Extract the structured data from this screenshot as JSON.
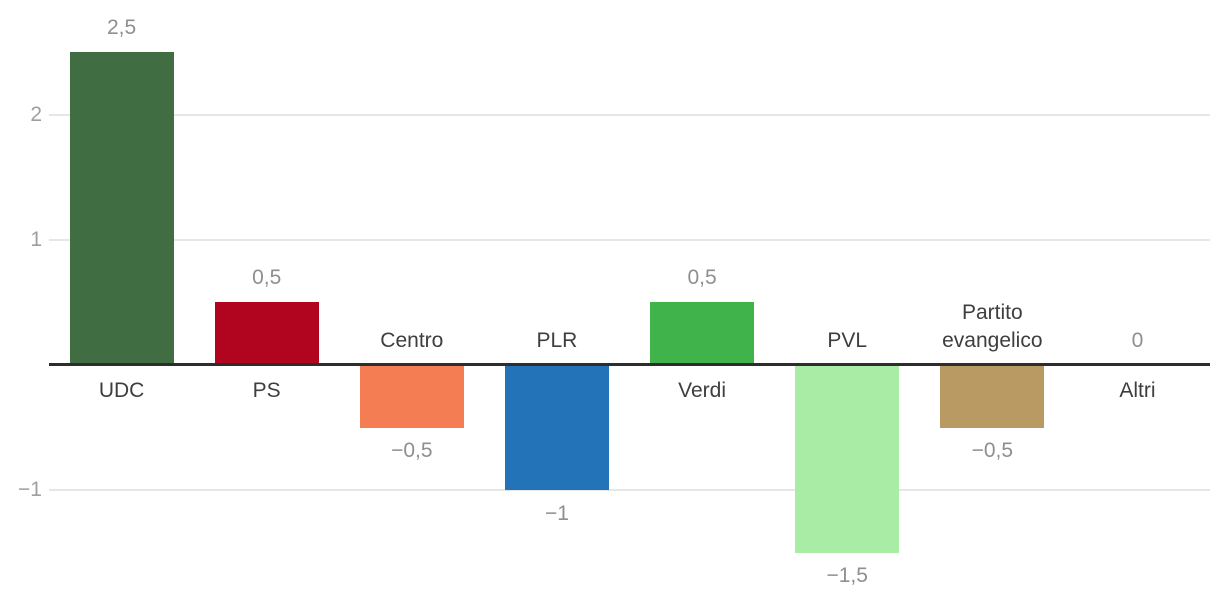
{
  "chart_data": {
    "type": "bar",
    "title": "",
    "xlabel": "",
    "ylabel": "",
    "grid": true,
    "legend": false,
    "decimal_separator": ",",
    "categories": [
      "UDC",
      "PS",
      "Centro",
      "PLR",
      "Verdi",
      "PVL",
      "Partito evangelico",
      "Altri"
    ],
    "values": [
      2.5,
      0.5,
      -0.5,
      -1,
      0.5,
      -1.5,
      -0.5,
      0
    ],
    "bars": [
      {
        "category": "UDC",
        "label_lines": [
          "UDC"
        ],
        "value": 2.5,
        "value_label": "2,5",
        "color": "#406e42"
      },
      {
        "category": "PS",
        "label_lines": [
          "PS"
        ],
        "value": 0.5,
        "value_label": "0,5",
        "color": "#b1051f"
      },
      {
        "category": "Centro",
        "label_lines": [
          "Centro"
        ],
        "value": -0.5,
        "value_label": "−0,5",
        "color": "#f47d54"
      },
      {
        "category": "PLR",
        "label_lines": [
          "PLR"
        ],
        "value": -1,
        "value_label": "−1",
        "color": "#2373b9"
      },
      {
        "category": "Verdi",
        "label_lines": [
          "Verdi"
        ],
        "value": 0.5,
        "value_label": "0,5",
        "color": "#40b44a"
      },
      {
        "category": "PVL",
        "label_lines": [
          "PVL"
        ],
        "value": -1.5,
        "value_label": "−1,5",
        "color": "#a8eca6"
      },
      {
        "category": "Partito evangelico",
        "label_lines": [
          "Partito",
          "evangelico"
        ],
        "value": -0.5,
        "value_label": "−0,5",
        "color": "#b99a62"
      },
      {
        "category": "Altri",
        "label_lines": [
          "Altri"
        ],
        "value": 0,
        "value_label": "0",
        "color": null
      }
    ],
    "y_axis": {
      "ticks": [
        {
          "value": 2,
          "label": "2"
        },
        {
          "value": 1,
          "label": "1"
        },
        {
          "value": -1,
          "label": "−1"
        }
      ],
      "range": [
        -1.95,
        2.9
      ]
    }
  },
  "style": {
    "background": "#ffffff",
    "axis_line_color": "#2d2d2d",
    "gridline_color": "#e6e6e6",
    "tick_label_color": "#9f9f9f",
    "value_label_color": "#8f8f8f",
    "category_label_color": "#3e3e3e"
  }
}
